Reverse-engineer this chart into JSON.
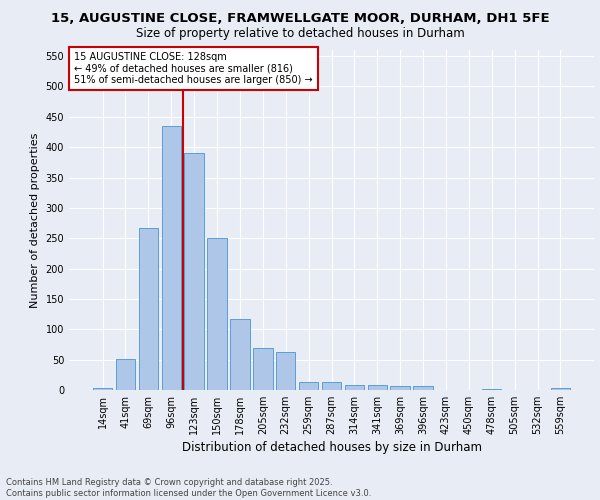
{
  "title_line1": "15, AUGUSTINE CLOSE, FRAMWELLGATE MOOR, DURHAM, DH1 5FE",
  "title_line2": "Size of property relative to detached houses in Durham",
  "xlabel": "Distribution of detached houses by size in Durham",
  "ylabel": "Number of detached properties",
  "footer_line1": "Contains HM Land Registry data © Crown copyright and database right 2025.",
  "footer_line2": "Contains public sector information licensed under the Open Government Licence v3.0.",
  "bar_labels": [
    "14sqm",
    "41sqm",
    "69sqm",
    "96sqm",
    "123sqm",
    "150sqm",
    "178sqm",
    "205sqm",
    "232sqm",
    "259sqm",
    "287sqm",
    "314sqm",
    "341sqm",
    "369sqm",
    "396sqm",
    "423sqm",
    "450sqm",
    "478sqm",
    "505sqm",
    "532sqm",
    "559sqm"
  ],
  "bar_values": [
    3,
    51,
    267,
    435,
    390,
    251,
    117,
    70,
    62,
    14,
    14,
    9,
    9,
    7,
    6,
    0,
    0,
    2,
    0,
    0,
    4
  ],
  "bar_color": "#aec6e8",
  "bar_edgecolor": "#5a9fd4",
  "annotation_text": "15 AUGUSTINE CLOSE: 128sqm\n← 49% of detached houses are smaller (816)\n51% of semi-detached houses are larger (850) →",
  "vline_color": "#cc0000",
  "annotation_box_facecolor": "#ffffff",
  "annotation_box_edgecolor": "#cc0000",
  "ylim": [
    0,
    560
  ],
  "yticks": [
    0,
    50,
    100,
    150,
    200,
    250,
    300,
    350,
    400,
    450,
    500,
    550
  ],
  "bg_color": "#e8edf5",
  "plot_bg_color": "#e8edf5",
  "grid_color": "#ffffff",
  "title_fontsize": 9.5,
  "subtitle_fontsize": 8.5,
  "ylabel_fontsize": 8,
  "xlabel_fontsize": 8.5,
  "tick_fontsize": 7,
  "footer_fontsize": 6,
  "annotation_fontsize": 7
}
